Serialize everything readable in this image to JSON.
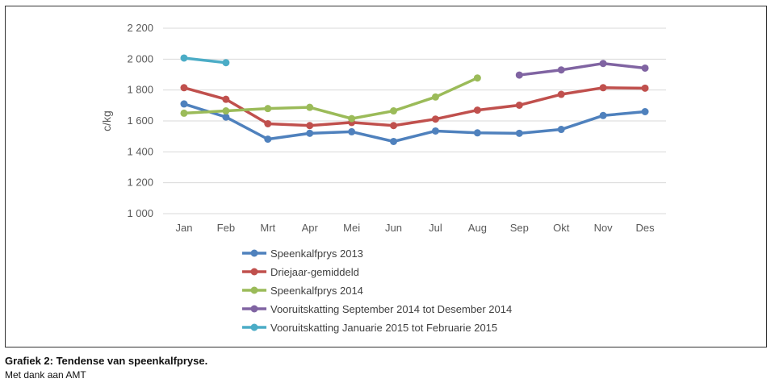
{
  "caption": "Grafiek 2: Tendense van speenkalfpryse.",
  "credit": "Met dank aan AMT",
  "chart_data": {
    "type": "line",
    "ylabel": "c/kg",
    "xlabel": "",
    "ylim": [
      1000,
      2200
    ],
    "yticks": [
      1000,
      1200,
      1400,
      1600,
      1800,
      2000,
      2200
    ],
    "ytick_labels": [
      "1 000",
      "1 200",
      "1 400",
      "1 600",
      "1 800",
      "2 000",
      "2 200"
    ],
    "categories": [
      "Jan",
      "Feb",
      "Mrt",
      "Apr",
      "Mei",
      "Jun",
      "Jul",
      "Aug",
      "Sep",
      "Okt",
      "Nov",
      "Des"
    ],
    "grid": true,
    "legend_position": "bottom",
    "series": [
      {
        "name": "Speenkalfprys 2013",
        "color": "#4f81bd",
        "values": [
          1710,
          1625,
          1482,
          1520,
          1530,
          1467,
          1535,
          1523,
          1520,
          1545,
          1635,
          1660
        ]
      },
      {
        "name": "Driejaar-gemiddeld",
        "color": "#c0504d",
        "values": [
          1815,
          1740,
          1582,
          1570,
          1590,
          1570,
          1612,
          1670,
          1702,
          1772,
          1815,
          1812
        ]
      },
      {
        "name": "Speenkalfprys 2014",
        "color": "#9bbb59",
        "values": [
          1650,
          1665,
          1680,
          1688,
          1615,
          1665,
          1755,
          1878,
          null,
          null,
          null,
          null
        ]
      },
      {
        "name": "Vooruitskatting September 2014 tot Desember 2014",
        "color": "#8064a2",
        "values": [
          null,
          null,
          null,
          null,
          null,
          null,
          null,
          null,
          1897,
          1930,
          1972,
          1942
        ]
      },
      {
        "name": "Vooruitskatting Januarie 2015 tot Februarie 2015",
        "color": "#4bacc6",
        "values": [
          2007,
          1977,
          null,
          null,
          null,
          null,
          null,
          null,
          null,
          null,
          null,
          null
        ]
      }
    ]
  }
}
